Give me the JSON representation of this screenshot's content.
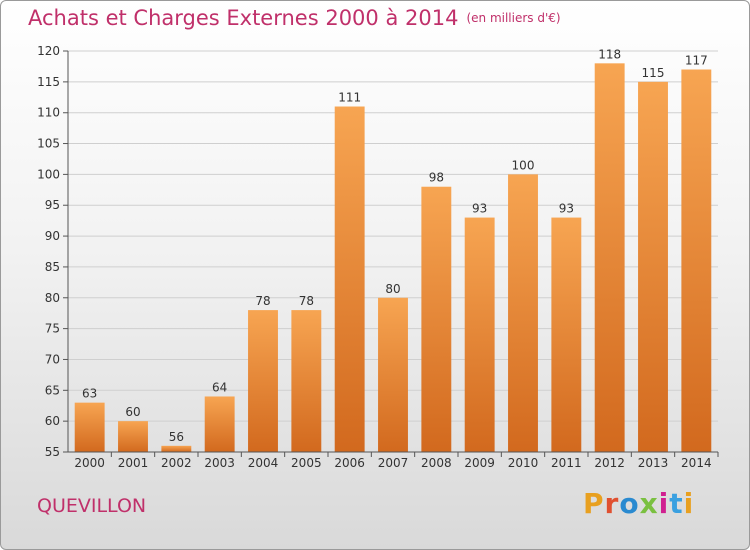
{
  "header": {
    "title": "Achats et Charges Externes 2000 à 2014",
    "subtitle": "(en milliers d'€)"
  },
  "footer": {
    "commune": "QUEVILLON",
    "logo_text": "Proxiti",
    "logo_colors": [
      "#e8a020",
      "#e05030",
      "#2a8ad0",
      "#7ac040",
      "#d02090",
      "#3aa0e0",
      "#e8a020"
    ]
  },
  "chart_data": {
    "type": "bar",
    "title": "Achats et Charges Externes 2000 à 2014",
    "subtitle": "(en milliers d'€)",
    "categories": [
      "2000",
      "2001",
      "2002",
      "2003",
      "2004",
      "2005",
      "2006",
      "2007",
      "2008",
      "2009",
      "2010",
      "2011",
      "2012",
      "2013",
      "2014"
    ],
    "values": [
      63,
      60,
      56,
      64,
      78,
      78,
      111,
      80,
      98,
      93,
      100,
      93,
      118,
      115,
      117
    ],
    "ylim": [
      55,
      120
    ],
    "yticks": [
      55,
      60,
      65,
      70,
      75,
      80,
      85,
      90,
      95,
      100,
      105,
      110,
      115,
      120
    ],
    "grid": true,
    "bar_color_top": "#f7a552",
    "bar_color_bottom": "#d2691e"
  }
}
